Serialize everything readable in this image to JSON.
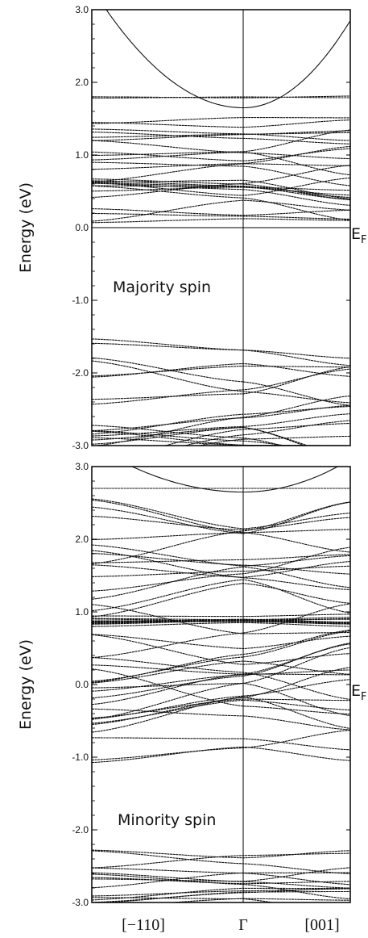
{
  "chart_data": {
    "type": "line",
    "x_ticks": [
      "[−110]",
      "Γ",
      "[001]"
    ],
    "panels": [
      {
        "ylabel": "Energy (eV)",
        "annotation": "Majority spin",
        "fermi_label": "E",
        "fermi_sub": "F",
        "ylim": [
          -3.0,
          3.0
        ],
        "y_ticks": [
          "3.0",
          "2.0",
          "1.0",
          "0.0",
          "-1.0",
          "-2.0",
          "-3.0"
        ],
        "y_tick_values": [
          3.0,
          2.0,
          1.0,
          0.0,
          -1.0,
          -2.0,
          -3.0
        ],
        "band_groups": [
          {
            "name": "conduction-parabola",
            "parabola": {
              "gamma": 1.65,
              "left": 3.3,
              "right": 2.85
            }
          },
          {
            "name": "upper-flat",
            "count": 2,
            "range": [
              1.78,
              1.86
            ],
            "seed": 11
          },
          {
            "name": "upper-mid",
            "count": 6,
            "range": [
              1.2,
              1.55
            ],
            "seed": 23
          },
          {
            "name": "dense-mid",
            "count": 18,
            "range": [
              0.35,
              1.05
            ],
            "seed": 37
          },
          {
            "name": "low-flat",
            "count": 3,
            "range": [
              0.12,
              0.32
            ],
            "seed": 41
          },
          {
            "name": "valence-top",
            "count": 4,
            "range": [
              -2.0,
              -1.5
            ],
            "seed": 53
          },
          {
            "name": "valence-dense",
            "count": 18,
            "range": [
              -3.0,
              -2.0
            ],
            "seed": 67
          }
        ]
      },
      {
        "ylabel": "Energy (eV)",
        "annotation": "Minority spin",
        "fermi_label": "E",
        "fermi_sub": "F",
        "ylim": [
          -3.0,
          3.0
        ],
        "y_ticks": [
          "3.0",
          "2.0",
          "1.0",
          "0.0",
          "-1.0",
          "-2.0",
          "-3.0"
        ],
        "y_tick_values": [
          3.0,
          2.0,
          1.0,
          0.0,
          -1.0,
          -2.0,
          -3.0
        ],
        "band_groups": [
          {
            "name": "conduction-parabola",
            "parabola": {
              "gamma": 2.65,
              "left": 3.3,
              "right": 3.1
            }
          },
          {
            "name": "upper-flat",
            "count": 1,
            "range": [
              2.7,
              2.7
            ],
            "seed": 71
          },
          {
            "name": "upper-dense",
            "count": 16,
            "range": [
              1.35,
              2.4
            ],
            "seed": 83
          },
          {
            "name": "flat-one",
            "count": 12,
            "range": [
              0.85,
              0.97
            ],
            "seed": 97
          },
          {
            "name": "mid-dense",
            "count": 20,
            "range": [
              -0.3,
              0.85
            ],
            "seed": 101
          },
          {
            "name": "lower-mid",
            "count": 4,
            "range": [
              -0.9,
              -0.35
            ],
            "seed": 113
          },
          {
            "name": "valence-top",
            "count": 3,
            "range": [
              -2.5,
              -2.1
            ],
            "seed": 127
          },
          {
            "name": "valence-dense",
            "count": 12,
            "range": [
              -3.0,
              -2.5
            ],
            "seed": 131
          }
        ]
      }
    ]
  }
}
